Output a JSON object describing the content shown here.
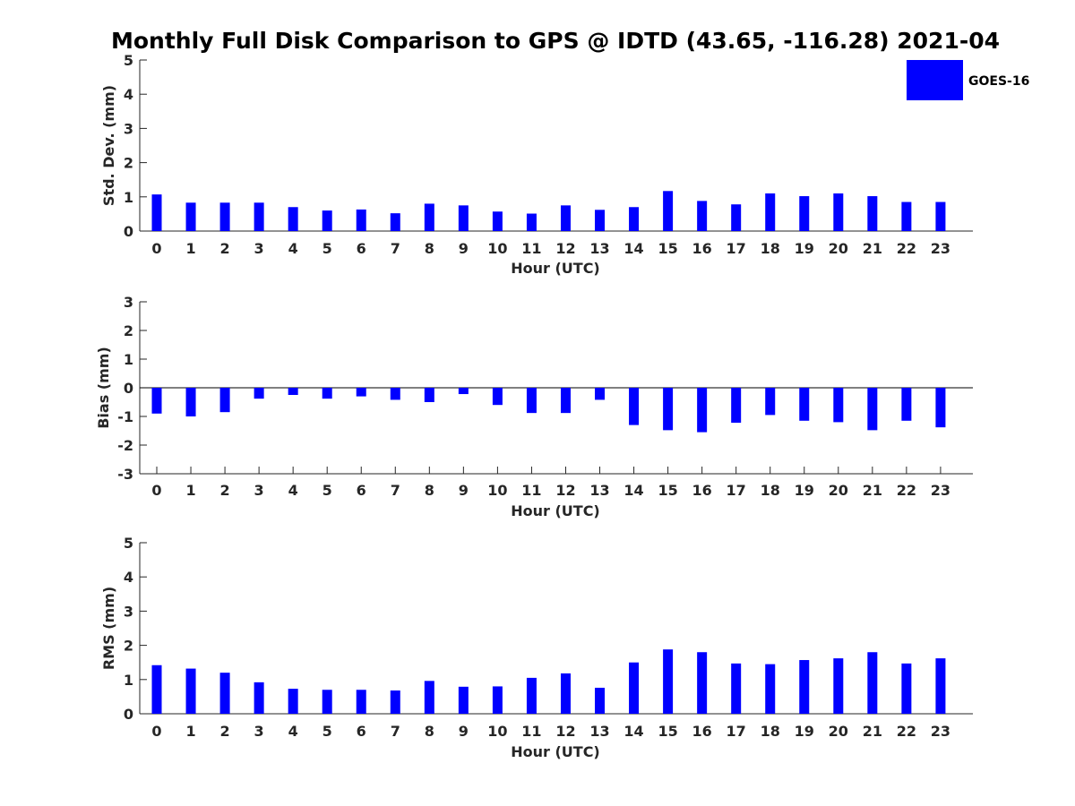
{
  "title": "Monthly Full Disk Comparison to GPS @ IDTD (43.65, -116.28) 2021-04",
  "legend": {
    "label": "GOES-16",
    "color": "#0000ff",
    "placement": "top-right"
  },
  "chart_data": [
    {
      "type": "bar",
      "categories": [
        "0",
        "1",
        "2",
        "3",
        "4",
        "5",
        "6",
        "7",
        "8",
        "9",
        "10",
        "11",
        "12",
        "13",
        "14",
        "15",
        "16",
        "17",
        "18",
        "19",
        "20",
        "21",
        "22",
        "23"
      ],
      "series": [
        {
          "name": "GOES-16",
          "values": [
            1.07,
            0.83,
            0.83,
            0.83,
            0.7,
            0.6,
            0.63,
            0.52,
            0.8,
            0.75,
            0.57,
            0.51,
            0.75,
            0.62,
            0.7,
            1.17,
            0.88,
            0.78,
            1.1,
            1.02,
            1.1,
            1.02,
            0.85,
            0.85
          ]
        }
      ],
      "xlabel": "Hour (UTC)",
      "ylabel": "Std. Dev. (mm)",
      "ylim": [
        0,
        5
      ],
      "yticks": [
        "0",
        "1",
        "2",
        "3",
        "4",
        "5"
      ]
    },
    {
      "type": "bar",
      "categories": [
        "0",
        "1",
        "2",
        "3",
        "4",
        "5",
        "6",
        "7",
        "8",
        "9",
        "10",
        "11",
        "12",
        "13",
        "14",
        "15",
        "16",
        "17",
        "18",
        "19",
        "20",
        "21",
        "22",
        "23"
      ],
      "series": [
        {
          "name": "GOES-16",
          "values": [
            -0.9,
            -1.0,
            -0.85,
            -0.38,
            -0.25,
            -0.38,
            -0.3,
            -0.42,
            -0.5,
            -0.22,
            -0.6,
            -0.88,
            -0.88,
            -0.42,
            -1.3,
            -1.48,
            -1.55,
            -1.22,
            -0.95,
            -1.15,
            -1.2,
            -1.48,
            -1.15,
            -1.38
          ]
        }
      ],
      "xlabel": "Hour (UTC)",
      "ylabel": "Bias (mm)",
      "ylim": [
        -3,
        3
      ],
      "yticks": [
        "-3",
        "-2",
        "-1",
        "0",
        "1",
        "2",
        "3"
      ]
    },
    {
      "type": "bar",
      "categories": [
        "0",
        "1",
        "2",
        "3",
        "4",
        "5",
        "6",
        "7",
        "8",
        "9",
        "10",
        "11",
        "12",
        "13",
        "14",
        "15",
        "16",
        "17",
        "18",
        "19",
        "20",
        "21",
        "22",
        "23"
      ],
      "series": [
        {
          "name": "GOES-16",
          "values": [
            1.42,
            1.32,
            1.2,
            0.92,
            0.73,
            0.7,
            0.7,
            0.68,
            0.96,
            0.79,
            0.8,
            1.05,
            1.18,
            0.76,
            1.5,
            1.88,
            1.8,
            1.47,
            1.45,
            1.57,
            1.62,
            1.8,
            1.47,
            1.62
          ]
        }
      ],
      "xlabel": "Hour (UTC)",
      "ylabel": "RMS (mm)",
      "ylim": [
        0,
        5
      ],
      "yticks": [
        "0",
        "1",
        "2",
        "3",
        "4",
        "5"
      ]
    }
  ]
}
